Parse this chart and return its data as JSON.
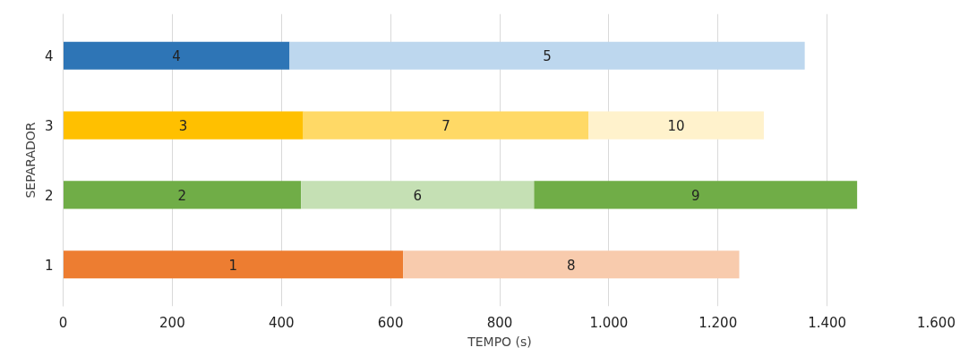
{
  "chart_data": {
    "type": "bar",
    "orientation": "horizontal",
    "stacked": true,
    "xlabel": "TEMPO (s)",
    "ylabel": "SEPARADOR",
    "categories": [
      "4",
      "3",
      "2",
      "1"
    ],
    "series": [
      {
        "colors": [
          "#2e75b6",
          "#ffc000",
          "#70ad47",
          "#ed7d31"
        ],
        "values": [
          415,
          440,
          436,
          623
        ]
      },
      {
        "colors": [
          "#bdd7ee",
          "#ffd966",
          "#c5e0b4",
          "#f8cbad"
        ],
        "values": [
          944,
          523,
          427,
          616
        ]
      },
      {
        "colors": [
          null,
          "#fff2cc",
          "#70ad47",
          null
        ],
        "values": [
          null,
          321,
          592,
          null
        ]
      }
    ],
    "annotations": [
      "4",
      "5",
      "3",
      "7",
      "10",
      "2",
      "6",
      "9",
      "1",
      "8"
    ],
    "xlim": [
      0,
      1600
    ],
    "xticks": [
      0,
      200,
      400,
      600,
      800,
      {
        "value": 1000,
        "label": "1.000"
      },
      {
        "value": 1200,
        "label": "1.200"
      },
      {
        "value": 1400,
        "label": "1.400"
      },
      {
        "value": 1600,
        "label": "1.600"
      }
    ],
    "grid": "x"
  }
}
